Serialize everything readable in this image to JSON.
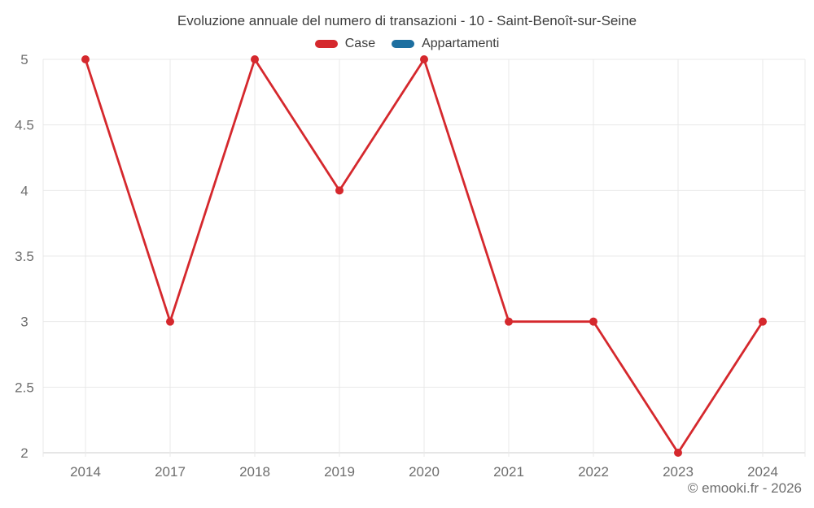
{
  "header": {
    "title": "Evoluzione annuale del numero di transazioni - 10 - Saint-Benoît-sur-Seine"
  },
  "legend": {
    "items": [
      {
        "label": "Case",
        "color": "#d5282d"
      },
      {
        "label": "Appartamenti",
        "color": "#1d6fa0"
      }
    ]
  },
  "footer": {
    "copyright": "© emooki.fr - 2026"
  },
  "chart_data": {
    "type": "line",
    "title": "Evoluzione annuale del numero di transazioni - 10 - Saint-Benoît-sur-Seine",
    "xlabel": "",
    "ylabel": "",
    "categories": [
      "2014",
      "2017",
      "2018",
      "2019",
      "2020",
      "2021",
      "2022",
      "2023",
      "2024"
    ],
    "series": [
      {
        "name": "Case",
        "color": "#d5282d",
        "values": [
          5,
          3,
          5,
          4,
          5,
          3,
          3,
          2,
          3
        ]
      },
      {
        "name": "Appartamenti",
        "color": "#1d6fa0",
        "values": []
      }
    ],
    "ylim": [
      2,
      5
    ],
    "yticks": [
      2,
      2.5,
      3,
      3.5,
      4,
      4.5,
      5
    ],
    "grid": true,
    "legend_position": "top",
    "colors": {
      "grid": "#e9e9e9",
      "axis": "#cccccc",
      "tick_label": "#6e6e6e",
      "background": "#ffffff"
    }
  }
}
